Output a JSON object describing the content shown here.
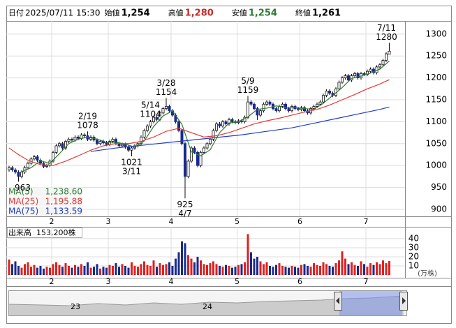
{
  "chart_data": {
    "type": "candlestick",
    "header": [
      {
        "label": "日付",
        "value": "2025/07/11 15:30"
      },
      {
        "label": "始値",
        "value": "1,254"
      },
      {
        "label": "高値",
        "value": "1,280",
        "color": "#c62828"
      },
      {
        "label": "安値",
        "value": "1,254",
        "color": "#2e7d32"
      },
      {
        "label": "終値",
        "value": "1,261"
      }
    ],
    "open": [
      990,
      995,
      990,
      985,
      975,
      985,
      995,
      1005,
      1015,
      1020,
      1012,
      1005,
      998,
      1000,
      1010,
      1030,
      1045,
      1050,
      1040,
      1055,
      1060,
      1058,
      1065,
      1062,
      1070,
      1068,
      1060,
      1065,
      1058,
      1050,
      1055,
      1052,
      1048,
      1055,
      1060,
      1050,
      1045,
      1048,
      1042,
      1035,
      1040,
      1045,
      1050,
      1065,
      1080,
      1090,
      1100,
      1110,
      1105,
      1120,
      1130,
      1135,
      1125,
      1115,
      1100,
      1080,
      1050,
      975,
      1010,
      1040,
      1030,
      1000,
      1030,
      1040,
      1050,
      1060,
      1080,
      1095,
      1090,
      1100,
      1095,
      1105,
      1100,
      1098,
      1102,
      1100,
      1110,
      1145,
      1140,
      1130,
      1115,
      1125,
      1140,
      1145,
      1140,
      1130,
      1125,
      1135,
      1140,
      1130,
      1125,
      1135,
      1130,
      1128,
      1132,
      1125,
      1120,
      1130,
      1135,
      1140,
      1145,
      1160,
      1170,
      1165,
      1160,
      1175,
      1190,
      1200,
      1205,
      1195,
      1205,
      1210,
      1200,
      1210,
      1208,
      1215,
      1220,
      1212,
      1225,
      1230,
      1240,
      1254
    ],
    "high": [
      999,
      999,
      994,
      989,
      989,
      999,
      1009,
      1019,
      1024,
      1024,
      1016,
      1009,
      1004,
      1014,
      1034,
      1049,
      1054,
      1054,
      1059,
      1064,
      1064,
      1069,
      1069,
      1074,
      1074,
      1078,
      1069,
      1069,
      1062,
      1059,
      1059,
      1056,
      1059,
      1064,
      1064,
      1054,
      1052,
      1052,
      1046,
      1044,
      1049,
      1054,
      1069,
      1084,
      1094,
      1104,
      1114,
      1114,
      1124,
      1134,
      1154,
      1139,
      1129,
      1119,
      1104,
      1084,
      1054,
      1014,
      1044,
      1044,
      1034,
      1034,
      1044,
      1054,
      1064,
      1084,
      1099,
      1099,
      1104,
      1104,
      1109,
      1109,
      1104,
      1106,
      1106,
      1114,
      1159,
      1149,
      1144,
      1134,
      1129,
      1144,
      1149,
      1149,
      1144,
      1134,
      1139,
      1144,
      1144,
      1134,
      1139,
      1139,
      1134,
      1136,
      1136,
      1129,
      1134,
      1139,
      1144,
      1149,
      1164,
      1174,
      1174,
      1169,
      1179,
      1194,
      1204,
      1209,
      1209,
      1209,
      1214,
      1214,
      1214,
      1214,
      1219,
      1224,
      1224,
      1229,
      1234,
      1244,
      1259,
      1280
    ],
    "low": [
      986,
      986,
      981,
      963,
      971,
      981,
      991,
      1001,
      1011,
      1008,
      1001,
      994,
      994,
      996,
      1006,
      1026,
      1041,
      1036,
      1036,
      1051,
      1054,
      1054,
      1058,
      1058,
      1064,
      1056,
      1056,
      1054,
      1046,
      1046,
      1048,
      1044,
      1044,
      1051,
      1046,
      1041,
      1041,
      1038,
      1031,
      1021,
      1036,
      1041,
      1046,
      1061,
      1076,
      1086,
      1096,
      1101,
      1101,
      1116,
      1126,
      1121,
      1111,
      1096,
      1076,
      1046,
      925,
      971,
      1006,
      1026,
      996,
      996,
      1026,
      1036,
      1046,
      1056,
      1076,
      1086,
      1086,
      1091,
      1091,
      1096,
      1094,
      1094,
      1096,
      1096,
      1106,
      1136,
      1126,
      1104,
      1111,
      1121,
      1136,
      1136,
      1126,
      1121,
      1121,
      1131,
      1126,
      1121,
      1121,
      1126,
      1124,
      1124,
      1121,
      1116,
      1116,
      1126,
      1131,
      1136,
      1141,
      1156,
      1161,
      1156,
      1156,
      1171,
      1186,
      1196,
      1191,
      1191,
      1201,
      1196,
      1196,
      1204,
      1204,
      1211,
      1208,
      1208,
      1221,
      1226,
      1236,
      1254
    ],
    "close": [
      995,
      990,
      985,
      975,
      985,
      995,
      1005,
      1015,
      1020,
      1012,
      1005,
      998,
      1000,
      1010,
      1030,
      1045,
      1050,
      1040,
      1055,
      1060,
      1058,
      1065,
      1062,
      1070,
      1068,
      1060,
      1065,
      1058,
      1050,
      1055,
      1052,
      1048,
      1055,
      1060,
      1050,
      1045,
      1048,
      1042,
      1035,
      1040,
      1045,
      1050,
      1065,
      1080,
      1090,
      1100,
      1110,
      1105,
      1120,
      1130,
      1135,
      1125,
      1115,
      1100,
      1080,
      1050,
      975,
      1010,
      1040,
      1030,
      1000,
      1030,
      1040,
      1050,
      1060,
      1080,
      1095,
      1090,
      1100,
      1095,
      1105,
      1100,
      1098,
      1102,
      1100,
      1110,
      1145,
      1140,
      1130,
      1115,
      1125,
      1140,
      1145,
      1140,
      1130,
      1125,
      1135,
      1140,
      1130,
      1125,
      1135,
      1130,
      1128,
      1132,
      1125,
      1120,
      1130,
      1135,
      1140,
      1145,
      1160,
      1170,
      1165,
      1160,
      1175,
      1190,
      1200,
      1205,
      1195,
      1205,
      1210,
      1200,
      1210,
      1208,
      1215,
      1220,
      1212,
      1225,
      1230,
      1240,
      1255,
      1261
    ],
    "volume": [
      17,
      12,
      15,
      10,
      8,
      12,
      14,
      9,
      11,
      8,
      10,
      7,
      9,
      8,
      12,
      14,
      11,
      9,
      13,
      10,
      8,
      11,
      9,
      12,
      10,
      14,
      8,
      9,
      12,
      7,
      9,
      8,
      11,
      10,
      13,
      9,
      12,
      10,
      8,
      14,
      10,
      9,
      12,
      15,
      11,
      10,
      16,
      9,
      13,
      11,
      12,
      14,
      10,
      18,
      25,
      37,
      35,
      22,
      18,
      14,
      20,
      16,
      12,
      11,
      13,
      15,
      12,
      10,
      9,
      11,
      10,
      8,
      9,
      11,
      12,
      14,
      45,
      25,
      18,
      20,
      15,
      12,
      14,
      10,
      9,
      11,
      13,
      10,
      9,
      8,
      10,
      9,
      8,
      11,
      12,
      10,
      9,
      13,
      11,
      10,
      14,
      12,
      10,
      9,
      13,
      16,
      26,
      18,
      12,
      14,
      11,
      10,
      15,
      12,
      9,
      13,
      11,
      14,
      12,
      16,
      13,
      15.32
    ],
    "up_color": "#ffffff",
    "down_color": "#1a2a8c",
    "up_volume_color": "#e02020",
    "down_volume_color": "#1a2a8c",
    "series": [
      {
        "name": "MA(5)",
        "color": "#2e7d32",
        "legend_label": "1,238.60",
        "x": [
          4,
          7,
          10,
          13,
          16,
          19,
          22,
          25,
          28,
          31,
          34,
          37,
          40,
          43,
          46,
          49,
          52,
          55,
          58,
          61,
          64,
          67,
          70,
          73,
          76,
          79,
          82,
          85,
          88,
          91,
          94,
          97,
          100,
          103,
          106,
          109,
          112,
          115,
          118,
          121
        ],
        "values": [
          986,
          995,
          1011,
          1005,
          1027,
          1050,
          1060,
          1065,
          1060,
          1053,
          1053,
          1049,
          1042,
          1056,
          1089,
          1113,
          1125,
          1094,
          1031,
          1022,
          1036,
          1075,
          1097,
          1100,
          1111,
          1128,
          1131,
          1136,
          1132,
          1132,
          1130,
          1128,
          1142,
          1160,
          1178,
          1199,
          1204,
          1211,
          1220,
          1238.6
        ]
      },
      {
        "name": "MA(25)",
        "color": "#e53935",
        "legend_label": "1,195.88",
        "x": [
          0,
          3,
          6,
          10,
          14,
          18,
          22,
          26,
          30,
          34,
          38,
          42,
          46,
          50,
          54,
          58,
          62,
          66,
          70,
          74,
          78,
          82,
          86,
          90,
          94,
          98,
          102,
          106,
          110,
          114,
          118,
          121
        ],
        "values": [
          1040,
          1025,
          1012,
          1002,
          1000,
          1010,
          1022,
          1035,
          1045,
          1050,
          1050,
          1055,
          1065,
          1078,
          1085,
          1075,
          1065,
          1068,
          1075,
          1085,
          1095,
          1102,
          1108,
          1115,
          1122,
          1128,
          1138,
          1150,
          1162,
          1175,
          1186,
          1195.88
        ]
      },
      {
        "name": "MA(75)",
        "color": "#1e3fc8",
        "legend_label": "1,133.59",
        "x": [
          26,
          30,
          34,
          38,
          42,
          46,
          50,
          54,
          58,
          62,
          66,
          70,
          74,
          78,
          82,
          86,
          90,
          94,
          98,
          102,
          106,
          110,
          114,
          118,
          121
        ],
        "values": [
          1032,
          1036,
          1040,
          1043,
          1046,
          1049,
          1052,
          1055,
          1058,
          1061,
          1064,
          1067,
          1070,
          1074,
          1078,
          1082,
          1086,
          1092,
          1098,
          1104,
          1110,
          1116,
          1122,
          1128,
          1133.59
        ]
      }
    ],
    "annotations": [
      {
        "value": 963
      },
      {
        "date": "2/19",
        "value": 1078
      },
      {
        "date": "3/11",
        "value": 1021
      },
      {
        "date": "3/28",
        "value": 1154
      },
      {
        "date": "4/7",
        "value": 925
      },
      {
        "date": "5/9",
        "value": 1159
      },
      {
        "date": "5/14",
        "value": 1104
      },
      {
        "date": "7/11",
        "value": 1280
      }
    ],
    "ylim": [
      884,
      1330
    ],
    "yticks": [
      900,
      950,
      1000,
      1050,
      1100,
      1150,
      1200,
      1250,
      1300
    ],
    "xticks": [
      {
        "value": 14,
        "label": "2"
      },
      {
        "value": 32,
        "label": "3"
      },
      {
        "value": 52,
        "label": "4"
      },
      {
        "value": 73,
        "label": "5"
      },
      {
        "value": 93,
        "label": "6"
      },
      {
        "value": 114,
        "label": "7"
      }
    ],
    "volume_title": "出来高",
    "volume_label": "153,200株",
    "volume_unit": "(万株)",
    "volume_ylim": [
      0,
      53
    ],
    "volume_yticks": [
      10,
      20,
      30,
      40
    ],
    "navigator_labels": [
      "23",
      "24"
    ],
    "grid": true
  }
}
